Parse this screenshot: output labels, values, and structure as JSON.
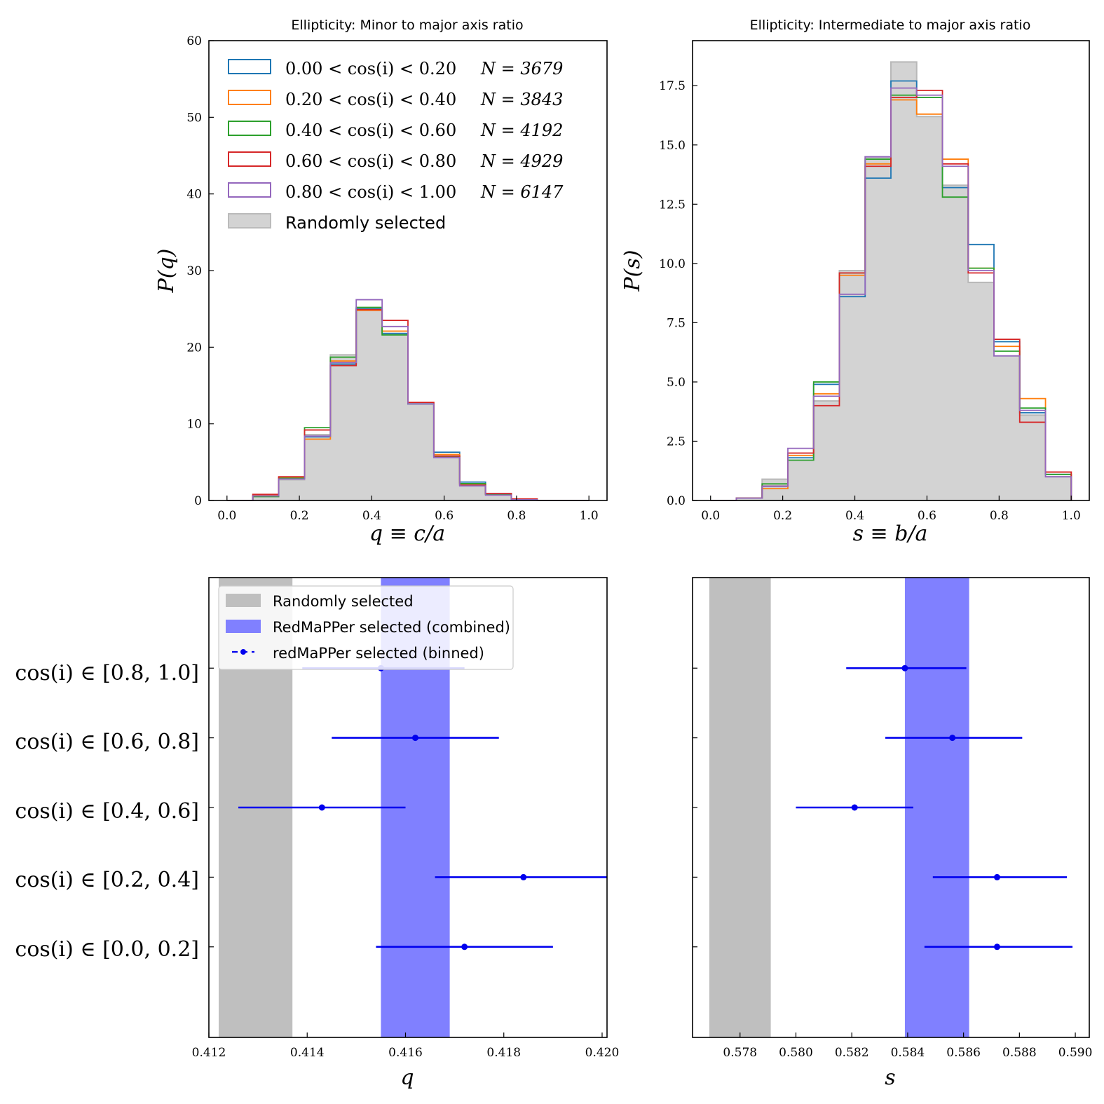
{
  "chart_data": [
    {
      "type": "histogram",
      "title": "Ellipticity: Minor to major axis ratio",
      "xlabel": "q ≡ c/a",
      "ylabel": "P(q)",
      "xlim": [
        -0.05,
        1.05
      ],
      "ylim": [
        0,
        60
      ],
      "xticks": [
        "0.0",
        "0.2",
        "0.4",
        "0.6",
        "0.8",
        "1.0"
      ],
      "yticks": [
        "0",
        "10",
        "20",
        "30",
        "40",
        "50",
        "60"
      ],
      "bin_edges": [
        0.0,
        0.0714,
        0.1429,
        0.2143,
        0.2857,
        0.3571,
        0.4286,
        0.5,
        0.5714,
        0.6429,
        0.7143,
        0.7857,
        0.8571,
        0.9286,
        1.0
      ],
      "series": [
        {
          "name": "0.00 < cos(i) < 0.20",
          "n_label": "N = 3679",
          "color": "#1f77b4",
          "values": [
            0,
            0.6,
            2.9,
            8.3,
            17.8,
            25.0,
            21.8,
            12.6,
            6.3,
            2.4,
            0.9,
            0.1,
            0,
            0
          ]
        },
        {
          "name": "0.20 < cos(i) < 0.40",
          "n_label": "N = 3843",
          "color": "#ff7f0e",
          "values": [
            0,
            0.7,
            3.0,
            8.0,
            18.2,
            24.8,
            22.1,
            12.8,
            6.0,
            2.2,
            0.8,
            0.1,
            0,
            0
          ]
        },
        {
          "name": "0.40 < cos(i) < 0.60",
          "n_label": "N = 4192",
          "color": "#2ca02c",
          "values": [
            0,
            0.5,
            2.9,
            9.5,
            18.7,
            25.2,
            21.6,
            12.6,
            5.7,
            2.2,
            0.8,
            0.1,
            0,
            0
          ]
        },
        {
          "name": "0.60 < cos(i) < 0.80",
          "n_label": "N = 4929",
          "color": "#d62728",
          "values": [
            0,
            0.8,
            3.1,
            9.2,
            17.6,
            24.9,
            23.5,
            12.8,
            5.8,
            2.0,
            0.9,
            0.2,
            0,
            0
          ]
        },
        {
          "name": "0.80 < cos(i) < 1.00",
          "n_label": "N = 6147",
          "color": "#9467bd",
          "values": [
            0,
            0.6,
            2.8,
            8.4,
            18.0,
            26.2,
            22.7,
            12.6,
            5.6,
            1.9,
            0.7,
            0.1,
            0,
            0
          ]
        }
      ],
      "random": {
        "name": "Randomly selected",
        "color": "#d3d3d3",
        "values": [
          0,
          0.5,
          2.7,
          8.6,
          19.0,
          25.0,
          21.7,
          12.6,
          5.8,
          2.1,
          0.8,
          0.1,
          0,
          0
        ]
      }
    },
    {
      "type": "histogram",
      "title": "Ellipticity: Intermediate to major axis ratio",
      "xlabel": "s ≡ b/a",
      "ylabel": "P(s)",
      "xlim": [
        -0.05,
        1.05
      ],
      "ylim": [
        0,
        19.4
      ],
      "xticks": [
        "0.0",
        "0.2",
        "0.4",
        "0.6",
        "0.8",
        "1.0"
      ],
      "yticks": [
        "0.0",
        "2.5",
        "5.0",
        "7.5",
        "10.0",
        "12.5",
        "15.0",
        "17.5"
      ],
      "bin_edges": [
        0.0,
        0.0714,
        0.1429,
        0.2143,
        0.2857,
        0.3571,
        0.4286,
        0.5,
        0.5714,
        0.6429,
        0.7143,
        0.7857,
        0.8571,
        0.9286,
        1.0
      ],
      "series": [
        {
          "name": "0.00 < cos(i) < 0.20",
          "color": "#1f77b4",
          "values": [
            0,
            0.1,
            0.6,
            1.8,
            4.9,
            8.6,
            13.6,
            17.7,
            17.0,
            13.2,
            10.8,
            6.7,
            3.7,
            1.1
          ]
        },
        {
          "name": "0.20 < cos(i) < 0.40",
          "color": "#ff7f0e",
          "values": [
            0,
            0.1,
            0.5,
            1.9,
            4.5,
            9.5,
            14.2,
            16.9,
            16.3,
            14.4,
            9.8,
            6.5,
            4.3,
            1.2
          ]
        },
        {
          "name": "0.40 < cos(i) < 0.60",
          "color": "#2ca02c",
          "values": [
            0,
            0.1,
            0.7,
            1.7,
            5.0,
            9.6,
            14.4,
            17.1,
            17.0,
            12.8,
            9.8,
            6.3,
            3.9,
            1.1
          ]
        },
        {
          "name": "0.60 < cos(i) < 0.80",
          "color": "#d62728",
          "values": [
            0,
            0.1,
            0.6,
            2.0,
            4.0,
            9.6,
            14.1,
            17.0,
            17.3,
            14.2,
            9.6,
            6.8,
            3.3,
            1.2
          ]
        },
        {
          "name": "0.80 < cos(i) < 1.00",
          "color": "#9467bd",
          "values": [
            0,
            0.1,
            0.6,
            2.2,
            4.4,
            8.7,
            14.5,
            17.4,
            17.1,
            14.1,
            9.7,
            6.1,
            3.8,
            1.0
          ]
        }
      ],
      "random": {
        "name": "Randomly selected",
        "color": "#d3d3d3",
        "values": [
          0,
          0.1,
          0.9,
          1.7,
          4.2,
          9.7,
          14.5,
          18.5,
          16.2,
          13.3,
          9.2,
          6.1,
          3.6,
          1.0
        ]
      }
    },
    {
      "type": "errorbar",
      "xlabel": "q",
      "xlim": [
        0.412,
        0.4201
      ],
      "xticks": [
        "0.412",
        "0.414",
        "0.416",
        "0.418",
        "0.420"
      ],
      "categories": [
        "cos(i) ∈ [0.0, 0.2]",
        "cos(i) ∈ [0.2, 0.4]",
        "cos(i) ∈ [0.4, 0.6]",
        "cos(i) ∈ [0.6, 0.8]",
        "cos(i) ∈ [0.8, 1.0]"
      ],
      "points": [
        {
          "value": 0.4172,
          "err_low": 0.4154,
          "err_high": 0.419
        },
        {
          "value": 0.4184,
          "err_low": 0.4166,
          "err_high": 0.4201
        },
        {
          "value": 0.4143,
          "err_low": 0.4126,
          "err_high": 0.416
        },
        {
          "value": 0.4162,
          "err_low": 0.4145,
          "err_high": 0.4179
        },
        {
          "value": 0.4155,
          "err_low": 0.4139,
          "err_high": 0.4172
        }
      ],
      "random_band": {
        "name": "Randomly selected",
        "range": [
          0.4122,
          0.4137
        ],
        "color": "#bfbfbf"
      },
      "combined_band": {
        "name": "RedMaPPer selected (combined)",
        "range": [
          0.4155,
          0.4169
        ],
        "color": "#8080ff"
      },
      "points_label": "redMaPPer selected (binned)",
      "points_color": "#0000ee"
    },
    {
      "type": "errorbar",
      "xlabel": "s",
      "xlim": [
        0.5763,
        0.5905
      ],
      "xticks": [
        "0.578",
        "0.580",
        "0.582",
        "0.584",
        "0.586",
        "0.588",
        "0.590"
      ],
      "categories": [
        "cos(i) ∈ [0.0, 0.2]",
        "cos(i) ∈ [0.2, 0.4]",
        "cos(i) ∈ [0.4, 0.6]",
        "cos(i) ∈ [0.6, 0.8]",
        "cos(i) ∈ [0.8, 1.0]"
      ],
      "points": [
        {
          "value": 0.5872,
          "err_low": 0.5846,
          "err_high": 0.5899
        },
        {
          "value": 0.5872,
          "err_low": 0.5849,
          "err_high": 0.5897
        },
        {
          "value": 0.5821,
          "err_low": 0.58,
          "err_high": 0.5842
        },
        {
          "value": 0.5856,
          "err_low": 0.5832,
          "err_high": 0.5881
        },
        {
          "value": 0.5839,
          "err_low": 0.5818,
          "err_high": 0.5861
        }
      ],
      "random_band": {
        "name": "Randomly selected",
        "range": [
          0.5769,
          0.5791
        ],
        "color": "#bfbfbf"
      },
      "combined_band": {
        "name": "RedMaPPer selected (combined)",
        "range": [
          0.5839,
          0.5862
        ],
        "color": "#8080ff"
      },
      "points_color": "#0000ee"
    }
  ]
}
